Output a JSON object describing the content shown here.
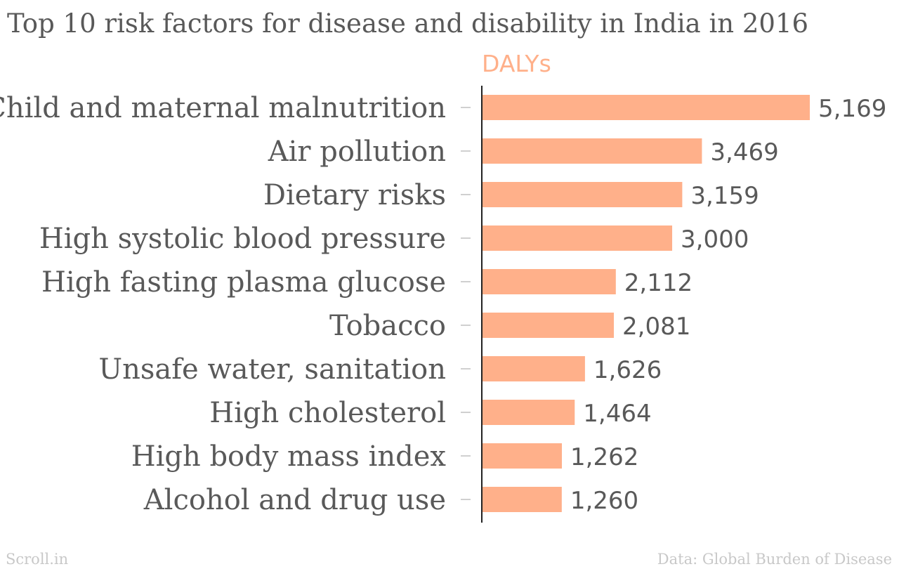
{
  "chart_data": {
    "type": "bar",
    "orientation": "horizontal",
    "title": "Top 10 risk factors for disease and disability in India in 2016",
    "series_name": "DALYs",
    "categories": [
      "Child and maternal malnutrition",
      "Air pollution",
      "Dietary risks",
      "High systolic blood pressure",
      "High fasting plasma glucose",
      "Tobacco",
      "Unsafe water, sanitation",
      "High cholesterol",
      "High body mass index",
      "Alcohol and drug use"
    ],
    "values": [
      5169,
      3469,
      3159,
      3000,
      2112,
      2081,
      1626,
      1464,
      1262,
      1260
    ],
    "value_labels": [
      "5,169",
      "3,469",
      "3,159",
      "3,000",
      "2,112",
      "2,081",
      "1,626",
      "1,464",
      "1,262",
      "1,260"
    ],
    "xlim": [
      0,
      5169
    ],
    "grid": false,
    "legend": "none",
    "bar_color": "#ffb08a"
  },
  "footer": {
    "source_left": "Scroll.in",
    "source_right": "Data: Global Burden of Disease"
  },
  "colors": {
    "bar": "#ffb08a",
    "text": "#595959",
    "footer_text": "#c8c8c8",
    "axis": "#222222"
  }
}
